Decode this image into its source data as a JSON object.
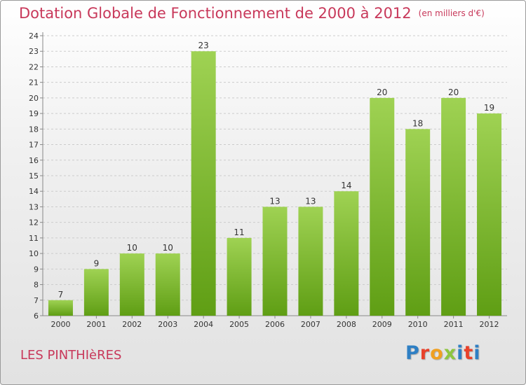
{
  "title": "Dotation Globale de Fonctionnement de 2000 à 2012",
  "unit": "(en milliers d'€)",
  "commune": "LES PINTHIèRES",
  "logo": "Proxiti",
  "colors": {
    "bar_top": "#9fd253",
    "bar_bottom": "#5f9e14",
    "title": "#c8385a",
    "axis": "#888888",
    "grid": "#cccccc"
  },
  "chart_data": {
    "type": "bar",
    "title": "Dotation Globale de Fonctionnement de 2000 à 2012",
    "subtitle": "(en milliers d'€)",
    "categories": [
      "2000",
      "2001",
      "2002",
      "2003",
      "2004",
      "2005",
      "2006",
      "2007",
      "2008",
      "2009",
      "2010",
      "2011",
      "2012"
    ],
    "values": [
      7,
      9,
      10,
      10,
      23,
      11,
      13,
      13,
      14,
      20,
      18,
      20,
      19
    ],
    "ylim": [
      6,
      24
    ],
    "yticks": [
      6,
      7,
      8,
      9,
      10,
      11,
      12,
      13,
      14,
      15,
      16,
      17,
      18,
      19,
      20,
      21,
      22,
      23,
      24
    ],
    "grid": "horizontal dashed",
    "legend": "none"
  }
}
